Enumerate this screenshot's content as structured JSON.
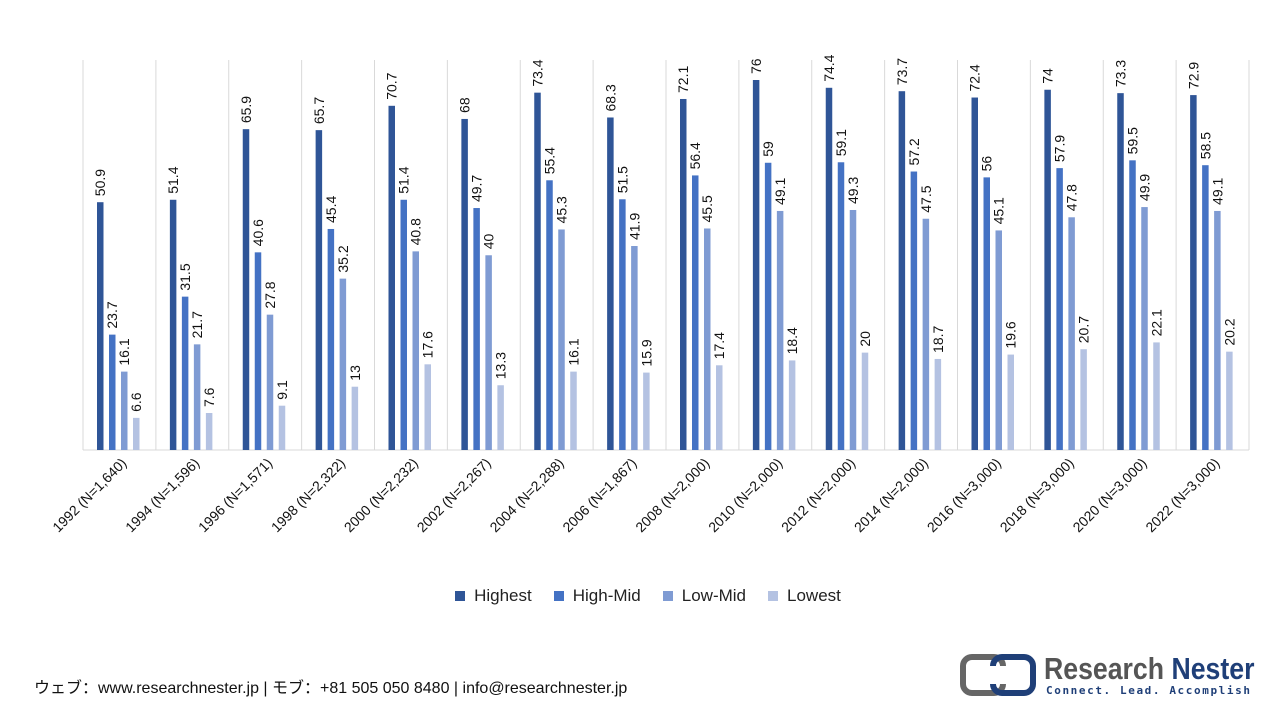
{
  "chart_data": {
    "type": "bar",
    "title": "",
    "xlabel": "",
    "ylabel": "",
    "ylim": [
      0,
      80
    ],
    "grid": "vertical separators only",
    "legend_position": "bottom",
    "categories": [
      "1992 (N=1,640)",
      "1994 (N=1,596)",
      "1996 (N=1,571)",
      "1998 (N=2,322)",
      "2000 (N=2,232)",
      "2002 (N=2,267)",
      "2004 (N=2,288)",
      "2006 (N=1,867)",
      "2008 (N=2,000)",
      "2010 (N=2,000)",
      "2012 (N=2,000)",
      "2014 (N=2,000)",
      "2016 (N=3,000)",
      "2018 (N=3,000)",
      "2020 (N=3,000)",
      "2022 (N=3,000)"
    ],
    "series": [
      {
        "name": "Highest",
        "color": "#2f5597",
        "values": [
          50.9,
          51.4,
          65.9,
          65.7,
          70.7,
          68,
          73.4,
          68.3,
          72.1,
          76,
          74.4,
          73.7,
          72.4,
          74,
          73.3,
          72.9
        ]
      },
      {
        "name": "High-Mid",
        "color": "#4472c4",
        "values": [
          23.7,
          31.5,
          40.6,
          45.4,
          51.4,
          49.7,
          55.4,
          51.5,
          56.4,
          59,
          59.1,
          57.2,
          56,
          57.9,
          59.5,
          58.5
        ]
      },
      {
        "name": "Low-Mid",
        "color": "#7f9bd3",
        "values": [
          16.1,
          21.7,
          27.8,
          35.2,
          40.8,
          40,
          45.3,
          41.9,
          45.5,
          49.1,
          49.3,
          47.5,
          45.1,
          47.8,
          49.9,
          49.1
        ]
      },
      {
        "name": "Lowest",
        "color": "#b4c2e2",
        "values": [
          6.6,
          7.6,
          9.1,
          13,
          17.6,
          13.3,
          16.1,
          15.9,
          17.4,
          18.4,
          20,
          18.7,
          19.6,
          20.7,
          22.1,
          20.2
        ]
      }
    ]
  },
  "footer": {
    "contact": "ウェブ：www.researchnester.jp | モブ：+81 505 050 8480 | info@researchnester.jp"
  },
  "logo": {
    "name_part1": "Research",
    "name_part2": "Nester",
    "tagline": "Connect. Lead. Accomplish"
  }
}
